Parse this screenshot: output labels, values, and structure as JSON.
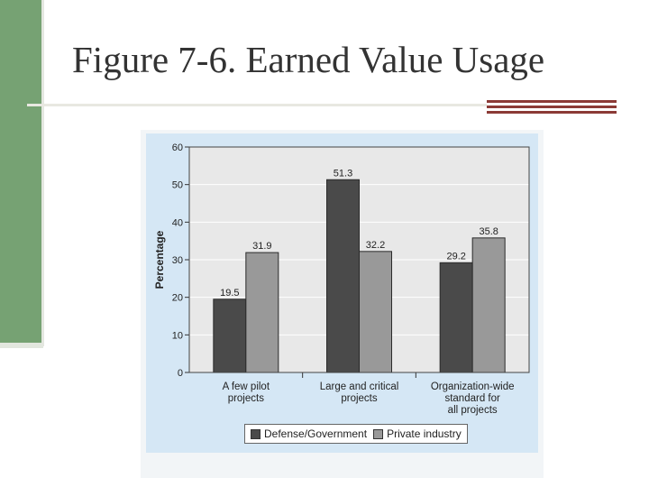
{
  "slide": {
    "title": "Figure 7-6. Earned Value Usage",
    "colors": {
      "side_bar": "#76a273",
      "accent": "#8b3a36",
      "panel": "#d5e7f5",
      "plot": "#e8e8e8"
    }
  },
  "chart_data": {
    "type": "bar",
    "categories": [
      [
        "A few pilot",
        "projects"
      ],
      [
        "Large and critical",
        "projects"
      ],
      [
        "Organization-wide",
        "standard for",
        "all projects"
      ]
    ],
    "series": [
      {
        "name": "Defense/Government",
        "values": [
          19.5,
          51.3,
          29.2
        ],
        "color": "#4a4a4a"
      },
      {
        "name": "Private industry",
        "values": [
          31.9,
          32.2,
          35.8
        ],
        "color": "#999999"
      }
    ],
    "title": "",
    "xlabel": "",
    "ylabel": "Percentage",
    "ylim": [
      0,
      60
    ],
    "yticks": [
      0,
      10,
      20,
      30,
      40,
      50,
      60
    ],
    "data_labels": true,
    "grid": true,
    "legend_position": "bottom"
  }
}
